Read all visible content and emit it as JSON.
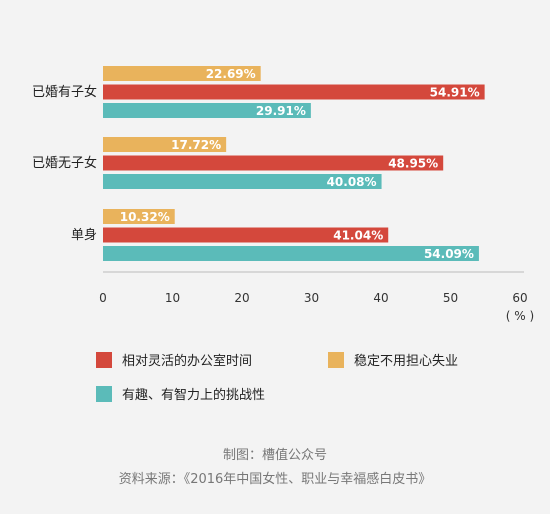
{
  "chart_data": {
    "type": "bar",
    "orientation": "horizontal",
    "categories": [
      "已婚有子女",
      "已婚无子女",
      "单身"
    ],
    "series": [
      {
        "name": "稳定不用担心失业",
        "color": "#e9b35c",
        "values": [
          22.69,
          17.72,
          10.32
        ],
        "labels": [
          "22.69%",
          "17.72%",
          "10.32%"
        ]
      },
      {
        "name": "相对灵活的办公室时间",
        "color": "#d4483c",
        "values": [
          54.91,
          48.95,
          41.04
        ],
        "labels": [
          "54.91%",
          "48.95%",
          "41.04%"
        ]
      },
      {
        "name": "有趣、有智力上的挑战性",
        "color": "#5bbbb9",
        "values": [
          29.91,
          40.08,
          54.09
        ],
        "labels": [
          "29.91%",
          "40.08%",
          "54.09%"
        ]
      }
    ],
    "xlim": [
      0,
      60
    ],
    "ticks": [
      "0",
      "10",
      "20",
      "30",
      "40",
      "50",
      "60"
    ],
    "unit_label": "( % )",
    "legend_placement": "bottom",
    "grid": false
  },
  "legend": {
    "items": [
      {
        "label": "相对灵活的办公室时间",
        "color": "#d4483c"
      },
      {
        "label": "稳定不用担心失业",
        "color": "#e9b35c"
      },
      {
        "label": "有趣、有智力上的挑战性",
        "color": "#5bbbb9"
      }
    ]
  },
  "footer": {
    "credit": "制图：槽值公众号",
    "source": "资料来源：《2016年中国女性、职业与幸福感白皮书》"
  }
}
